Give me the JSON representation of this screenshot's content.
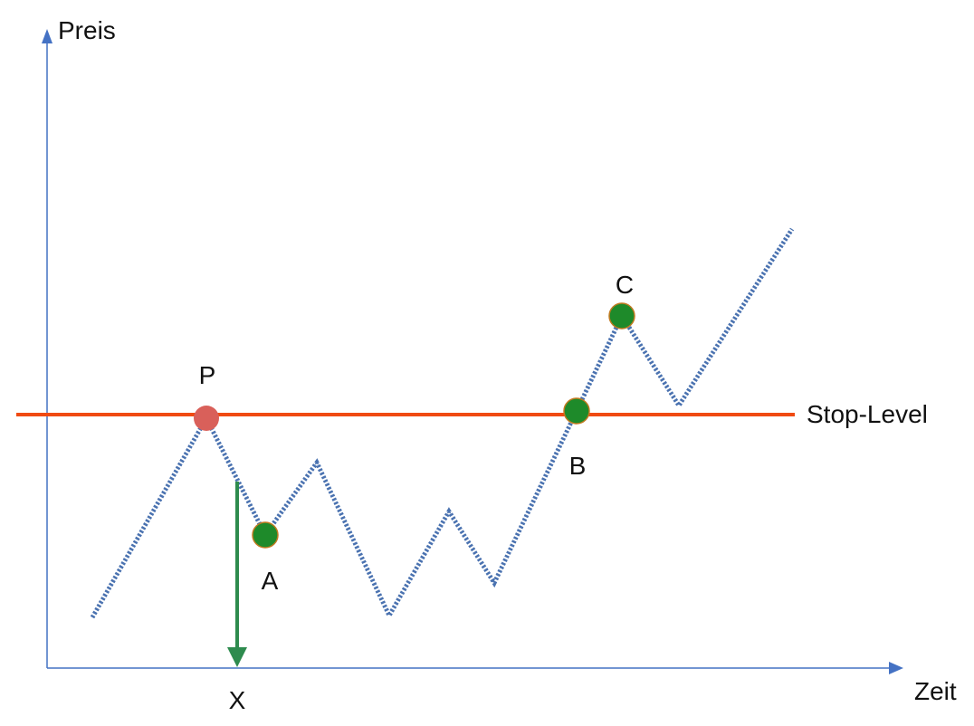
{
  "axes": {
    "y_label": "Preis",
    "x_label": "Zeit",
    "color": "#4472c4"
  },
  "stop_level": {
    "label": "Stop-Level",
    "color": "#f04a12"
  },
  "price_path": {
    "color": "#4a72b0",
    "style": "dotted"
  },
  "points": [
    {
      "label": "P",
      "color": "#d9605a"
    },
    {
      "label": "A",
      "color": "#1e8a2a"
    },
    {
      "label": "B",
      "color": "#1e8a2a"
    },
    {
      "label": "C",
      "color": "#1e8a2a"
    }
  ],
  "marker": {
    "label": "X",
    "color": "#2e8b4e",
    "icon": "arrow-down-icon"
  }
}
